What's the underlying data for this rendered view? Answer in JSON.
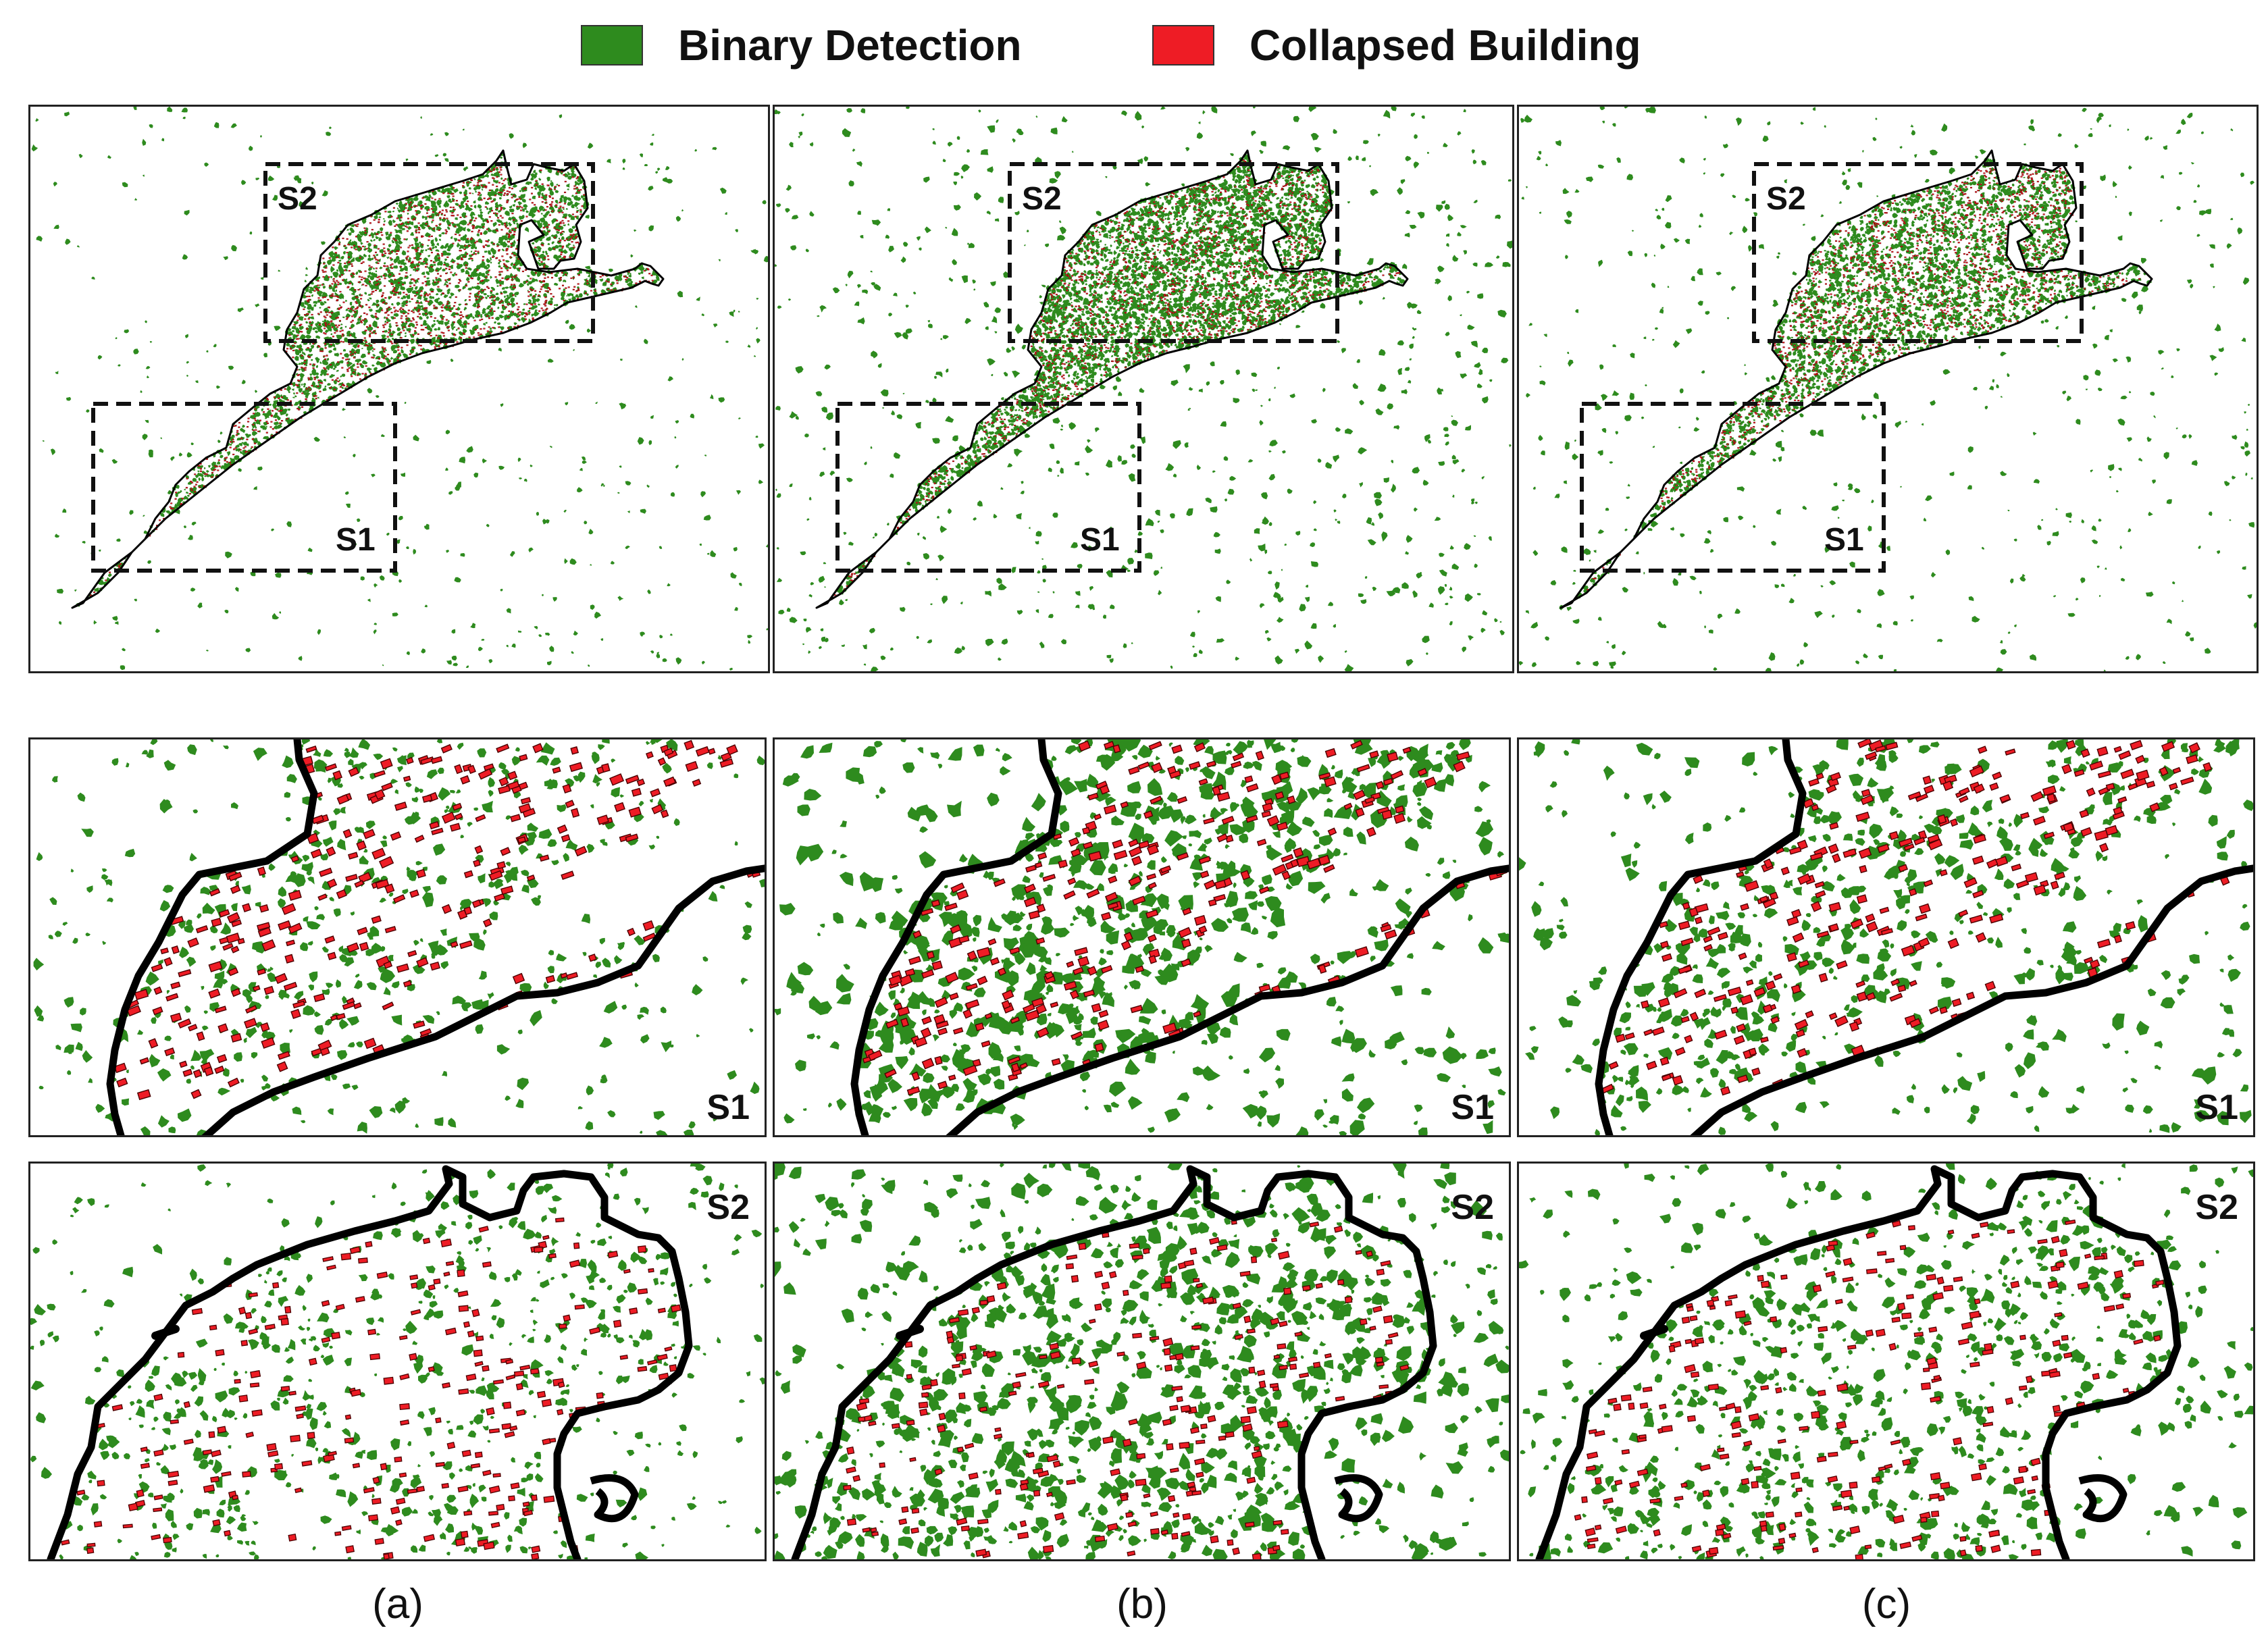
{
  "legend": {
    "items": [
      {
        "label": "Binary Detection",
        "color": "#2e8b1e"
      },
      {
        "label": "Collapsed Building",
        "color": "#ee1c25"
      }
    ]
  },
  "colors": {
    "binary_detection": "#2e8b1e",
    "collapsed_building": "#ee1c25",
    "boundary": "#000000"
  },
  "overview": {
    "subset_labels": {
      "s1": "S1",
      "s2": "S2"
    }
  },
  "zoom_panels": {
    "s1_label": "S1",
    "s2_label": "S2"
  },
  "captions": [
    "(a)",
    "(b)",
    "(c)"
  ],
  "columns": [
    {
      "key": "a",
      "binary_density": 1.0
    },
    {
      "key": "b",
      "binary_density": 1.7
    },
    {
      "key": "c",
      "binary_density": 1.2
    }
  ]
}
